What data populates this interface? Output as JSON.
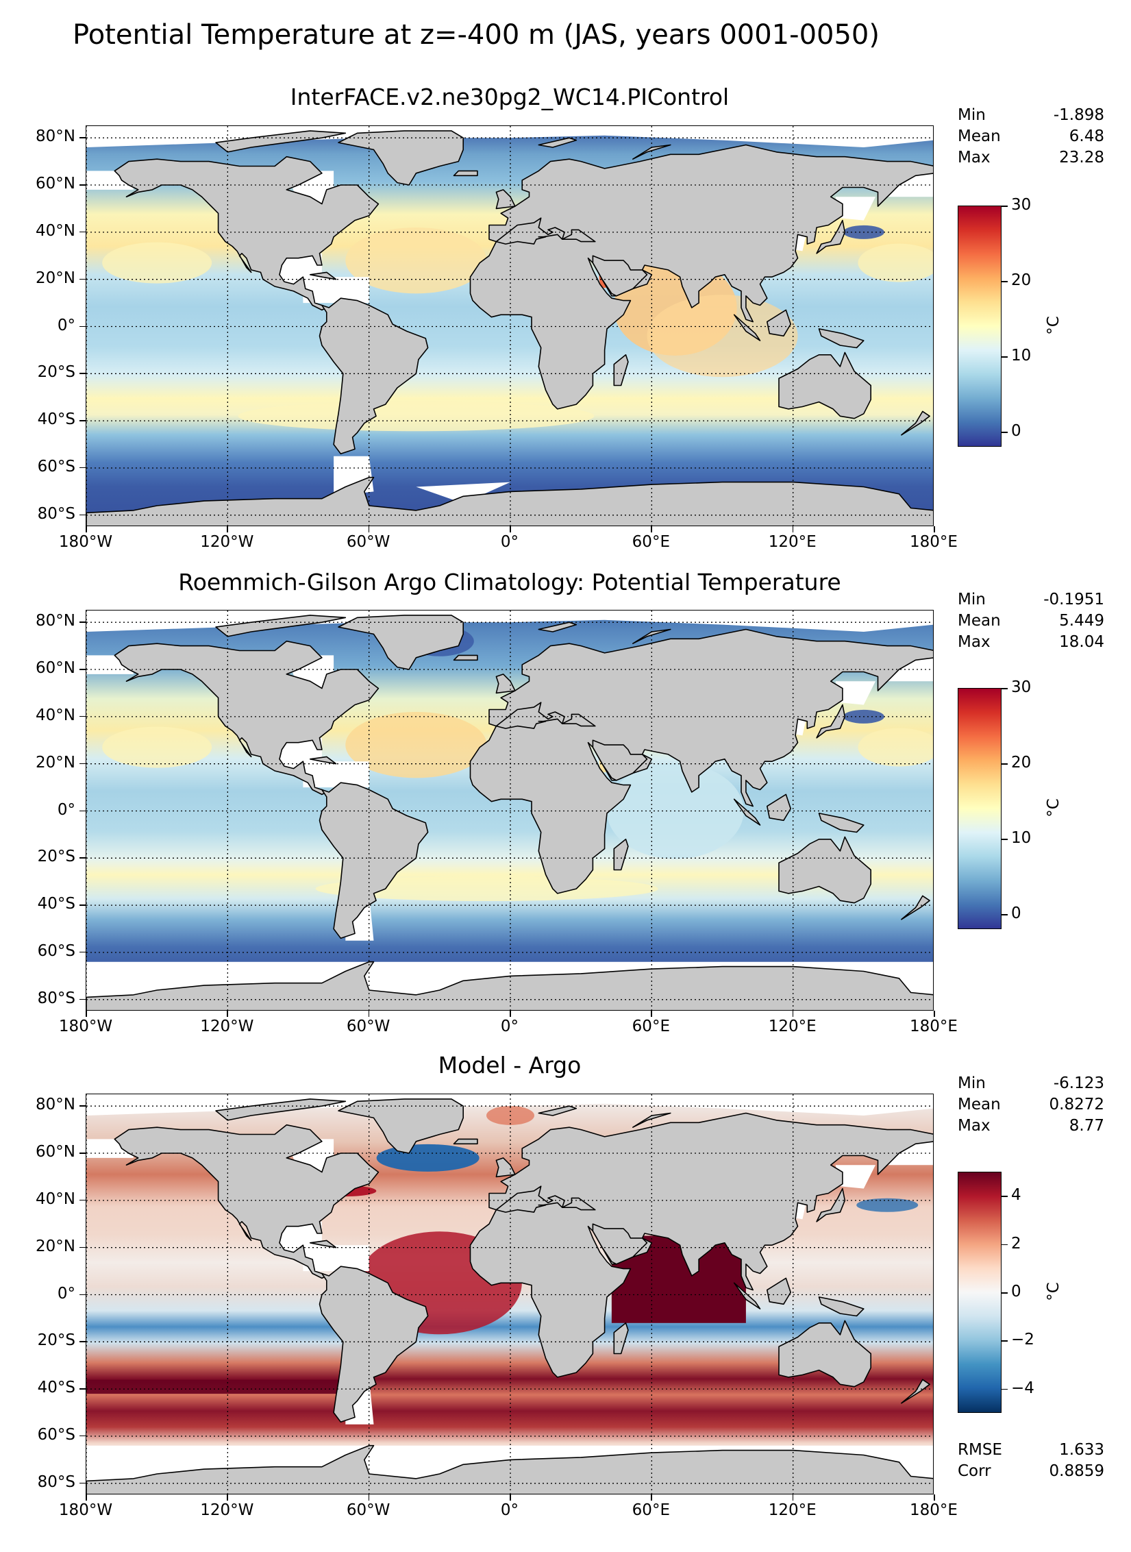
{
  "figure": {
    "title": "Potential Temperature at z=-400 m (JAS, years 0001-0050)"
  },
  "axes": {
    "lat_labels": [
      "80°N",
      "60°N",
      "40°N",
      "20°N",
      "0°",
      "20°S",
      "40°S",
      "60°S",
      "80°S"
    ],
    "lon_labels": [
      "180°W",
      "120°W",
      "60°W",
      "0°",
      "60°E",
      "120°E",
      "180°E"
    ]
  },
  "panels": [
    {
      "title": "InterFACE.v2.ne30pg2_WC14.PIControl",
      "stats": [
        {
          "label": "Min",
          "value": "-1.898"
        },
        {
          "label": "Mean",
          "value": "6.48"
        },
        {
          "label": "Max",
          "value": "23.28"
        }
      ],
      "colorbar": {
        "unit": "°C",
        "ticks": [
          "0",
          "10",
          "20",
          "30"
        ],
        "range": [
          -2,
          30
        ],
        "colormap": "RdYlBu_r",
        "colors": [
          "#313695",
          "#4575b4",
          "#74add1",
          "#abd9e9",
          "#e0f3f8",
          "#ffffbf",
          "#fee090",
          "#fdae61",
          "#f46d43",
          "#d73027",
          "#a50026"
        ]
      }
    },
    {
      "title": "Roemmich-Gilson Argo Climatology: Potential Temperature",
      "stats": [
        {
          "label": "Min",
          "value": "-0.1951"
        },
        {
          "label": "Mean",
          "value": "5.449"
        },
        {
          "label": "Max",
          "value": "18.04"
        }
      ],
      "colorbar": {
        "unit": "°C",
        "ticks": [
          "0",
          "10",
          "20",
          "30"
        ],
        "range": [
          -2,
          30
        ],
        "colormap": "RdYlBu_r",
        "colors": [
          "#313695",
          "#4575b4",
          "#74add1",
          "#abd9e9",
          "#e0f3f8",
          "#ffffbf",
          "#fee090",
          "#fdae61",
          "#f46d43",
          "#d73027",
          "#a50026"
        ]
      }
    },
    {
      "title": "Model - Argo",
      "stats": [
        {
          "label": "Min",
          "value": "-6.123"
        },
        {
          "label": "Mean",
          "value": "0.8272"
        },
        {
          "label": "Max",
          "value": "8.77"
        }
      ],
      "extra_stats": [
        {
          "label": "RMSE",
          "value": "1.633"
        },
        {
          "label": "Corr",
          "value": "0.8859"
        }
      ],
      "colorbar": {
        "unit": "°C",
        "ticks": [
          "−4",
          "−2",
          "0",
          "2",
          "4"
        ],
        "range": [
          -5,
          5
        ],
        "colormap": "RdBu_r",
        "colors": [
          "#053061",
          "#2166ac",
          "#4393c3",
          "#92c5de",
          "#d1e5f0",
          "#f7f7f7",
          "#fddbc7",
          "#f4a582",
          "#d6604d",
          "#b2182b",
          "#67001f"
        ]
      }
    }
  ],
  "map_style": {
    "land_color": "#c8c8c8",
    "no_data_color": "#ffffff",
    "coastline_color": "#000000",
    "gridline_style": "dotted"
  }
}
